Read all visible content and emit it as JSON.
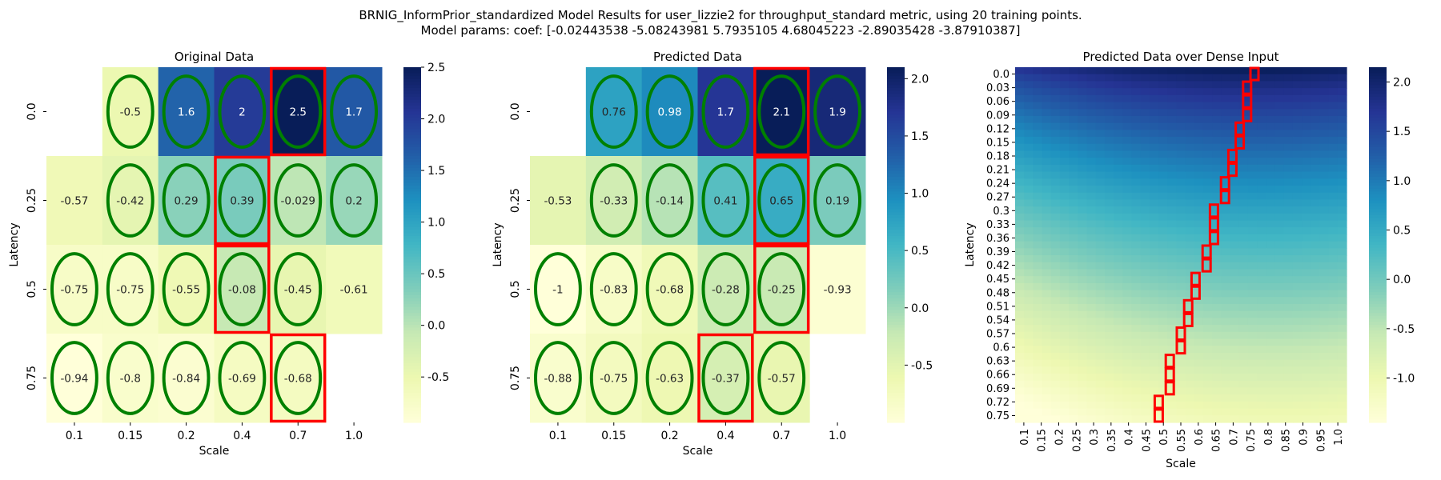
{
  "figure": {
    "suptitle_line1": "BRNIG_InformPrior_standardized Model Results for user_lizzie2 for throughput_standard metric, using 20 training points.",
    "suptitle_line2": "Model params: coef: [-0.02443538 -5.08243981  5.7935105   4.68045223 -2.89035428 -3.87910387]"
  },
  "colors": {
    "colormap": "YlGnBu",
    "ellipse": "#008000",
    "highlight": "#ff0000"
  },
  "chart_data": [
    {
      "type": "heatmap",
      "title": "Original Data",
      "xlabel": "Scale",
      "ylabel": "Latency",
      "x_tick_labels": [
        "0.1",
        "0.15",
        "0.2",
        "0.4",
        "0.7",
        "1.0"
      ],
      "y_tick_labels": [
        "0.0",
        "0.25",
        "0.5",
        "0.75"
      ],
      "values": [
        [
          null,
          -0.5,
          1.6,
          2,
          2.5,
          1.7
        ],
        [
          -0.57,
          -0.42,
          0.29,
          0.39,
          -0.029,
          0.2
        ],
        [
          -0.75,
          -0.75,
          -0.55,
          -0.08,
          -0.45,
          -0.61
        ],
        [
          -0.94,
          -0.8,
          -0.84,
          -0.69,
          -0.68,
          null
        ]
      ],
      "cell_labels": [
        [
          "",
          "-0.5",
          "1.6",
          "2",
          "2.5",
          "1.7"
        ],
        [
          "-0.57",
          "-0.42",
          "0.29",
          "0.39",
          "-0.029",
          "0.2"
        ],
        [
          "-0.75",
          "-0.75",
          "-0.55",
          "-0.08",
          "-0.45",
          "-0.61"
        ],
        [
          "-0.94",
          "-0.8",
          "-0.84",
          "-0.69",
          "-0.68",
          ""
        ]
      ],
      "vmin": -0.94,
      "vmax": 2.5,
      "colorbar_ticks": [
        "-0.5",
        "0.0",
        "0.5",
        "1.0",
        "1.5",
        "2.0",
        "2.5"
      ],
      "ellipse_cells": [
        [
          0,
          1
        ],
        [
          0,
          2
        ],
        [
          0,
          3
        ],
        [
          0,
          4
        ],
        [
          0,
          5
        ],
        [
          1,
          1
        ],
        [
          1,
          2
        ],
        [
          1,
          3
        ],
        [
          1,
          4
        ],
        [
          1,
          5
        ],
        [
          2,
          0
        ],
        [
          2,
          1
        ],
        [
          2,
          2
        ],
        [
          2,
          3
        ],
        [
          2,
          4
        ],
        [
          3,
          0
        ],
        [
          3,
          1
        ],
        [
          3,
          2
        ],
        [
          3,
          3
        ],
        [
          3,
          4
        ]
      ],
      "highlight_cells": [
        [
          0,
          4
        ],
        [
          1,
          3
        ],
        [
          2,
          3
        ],
        [
          3,
          4
        ]
      ]
    },
    {
      "type": "heatmap",
      "title": "Predicted Data",
      "xlabel": "Scale",
      "ylabel": "Latency",
      "x_tick_labels": [
        "0.1",
        "0.15",
        "0.2",
        "0.4",
        "0.7",
        "1.0"
      ],
      "y_tick_labels": [
        "0.0",
        "0.25",
        "0.5",
        "0.75"
      ],
      "values": [
        [
          null,
          0.76,
          0.98,
          1.7,
          2.1,
          1.9
        ],
        [
          -0.53,
          -0.33,
          -0.14,
          0.41,
          0.65,
          0.19
        ],
        [
          -1,
          -0.83,
          -0.68,
          -0.28,
          -0.25,
          -0.93
        ],
        [
          -0.88,
          -0.75,
          -0.63,
          -0.37,
          -0.57,
          null
        ]
      ],
      "cell_labels": [
        [
          "",
          "0.76",
          "0.98",
          "1.7",
          "2.1",
          "1.9"
        ],
        [
          "-0.53",
          "-0.33",
          "-0.14",
          "0.41",
          "0.65",
          "0.19"
        ],
        [
          "-1",
          "-0.83",
          "-0.68",
          "-0.28",
          "-0.25",
          "-0.93"
        ],
        [
          "-0.88",
          "-0.75",
          "-0.63",
          "-0.37",
          "-0.57",
          ""
        ]
      ],
      "vmin": -1.0,
      "vmax": 2.1,
      "colorbar_ticks": [
        "-0.5",
        "0.0",
        "0.5",
        "1.0",
        "1.5",
        "2.0"
      ],
      "ellipse_cells": [
        [
          0,
          1
        ],
        [
          0,
          2
        ],
        [
          0,
          3
        ],
        [
          0,
          4
        ],
        [
          0,
          5
        ],
        [
          1,
          1
        ],
        [
          1,
          2
        ],
        [
          1,
          3
        ],
        [
          1,
          4
        ],
        [
          1,
          5
        ],
        [
          2,
          0
        ],
        [
          2,
          1
        ],
        [
          2,
          2
        ],
        [
          2,
          3
        ],
        [
          2,
          4
        ],
        [
          3,
          0
        ],
        [
          3,
          1
        ],
        [
          3,
          2
        ],
        [
          3,
          3
        ],
        [
          3,
          4
        ]
      ],
      "highlight_cells": [
        [
          0,
          4
        ],
        [
          1,
          4
        ],
        [
          2,
          4
        ],
        [
          3,
          3
        ]
      ]
    },
    {
      "type": "heatmap",
      "title": "Predicted Data over Dense Input",
      "xlabel": "Scale",
      "ylabel": "Latency",
      "x_tick_labels": [
        "0.1",
        "0.15",
        "0.2",
        "0.25",
        "0.3",
        "0.35",
        "0.4",
        "0.45",
        "0.5",
        "0.55",
        "0.6",
        "0.65",
        "0.7",
        "0.75",
        "0.8",
        "0.85",
        "0.9",
        "0.95",
        "1.0"
      ],
      "y_tick_labels": [
        "0.0",
        "0.03",
        "0.06",
        "0.09",
        "0.12",
        "0.15",
        "0.18",
        "0.21",
        "0.24",
        "0.27",
        "0.3",
        "0.33",
        "0.36",
        "0.39",
        "0.42",
        "0.45",
        "0.48",
        "0.51",
        "0.54",
        "0.57",
        "0.6",
        "0.63",
        "0.66",
        "0.69",
        "0.72",
        "0.75"
      ],
      "x_range": [
        0.1,
        1.0
      ],
      "y_range": [
        0.0,
        0.75
      ],
      "vmin": -1.45,
      "vmax": 2.15,
      "colorbar_ticks": [
        "-1.0",
        "-0.5",
        "0.0",
        "0.5",
        "1.0",
        "1.5",
        "2.0"
      ],
      "optimum_path": [
        {
          "latency": 0.0,
          "scale": 0.75
        },
        {
          "latency": 0.03,
          "scale": 0.73
        },
        {
          "latency": 0.06,
          "scale": 0.73
        },
        {
          "latency": 0.09,
          "scale": 0.73
        },
        {
          "latency": 0.12,
          "scale": 0.71
        },
        {
          "latency": 0.15,
          "scale": 0.71
        },
        {
          "latency": 0.18,
          "scale": 0.69
        },
        {
          "latency": 0.21,
          "scale": 0.69
        },
        {
          "latency": 0.24,
          "scale": 0.67
        },
        {
          "latency": 0.27,
          "scale": 0.67
        },
        {
          "latency": 0.3,
          "scale": 0.64
        },
        {
          "latency": 0.33,
          "scale": 0.64
        },
        {
          "latency": 0.36,
          "scale": 0.64
        },
        {
          "latency": 0.39,
          "scale": 0.62
        },
        {
          "latency": 0.42,
          "scale": 0.62
        },
        {
          "latency": 0.45,
          "scale": 0.59
        },
        {
          "latency": 0.48,
          "scale": 0.59
        },
        {
          "latency": 0.51,
          "scale": 0.57
        },
        {
          "latency": 0.54,
          "scale": 0.57
        },
        {
          "latency": 0.57,
          "scale": 0.55
        },
        {
          "latency": 0.6,
          "scale": 0.55
        },
        {
          "latency": 0.63,
          "scale": 0.52
        },
        {
          "latency": 0.66,
          "scale": 0.52
        },
        {
          "latency": 0.69,
          "scale": 0.52
        },
        {
          "latency": 0.72,
          "scale": 0.49
        },
        {
          "latency": 0.75,
          "scale": 0.49
        }
      ]
    }
  ]
}
